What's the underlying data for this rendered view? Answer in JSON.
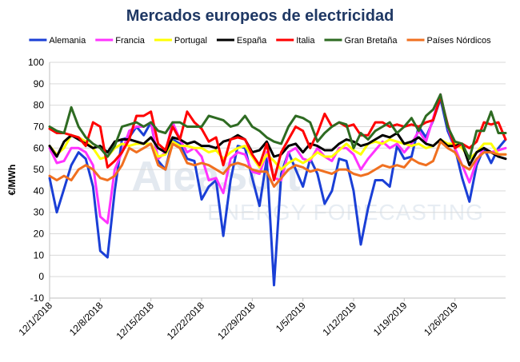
{
  "chart_data": {
    "type": "line",
    "title": "Mercados europeos de electricidad",
    "ylabel": "€/MWh",
    "xlabel": "",
    "ylim": [
      -10,
      100
    ],
    "yticks": [
      -10,
      0,
      10,
      20,
      30,
      40,
      50,
      60,
      70,
      80,
      90,
      100
    ],
    "grid": true,
    "legend_position": "top",
    "x": [
      "12/1/2018",
      "12/2/2018",
      "12/3/2018",
      "12/4/2018",
      "12/5/2018",
      "12/6/2018",
      "12/7/2018",
      "12/8/2018",
      "12/9/2018",
      "12/10/2018",
      "12/11/2018",
      "12/12/2018",
      "12/13/2018",
      "12/14/2018",
      "12/15/2018",
      "12/16/2018",
      "12/17/2018",
      "12/18/2018",
      "12/19/2018",
      "12/20/2018",
      "12/21/2018",
      "12/22/2018",
      "12/23/2018",
      "12/24/2018",
      "12/25/2018",
      "12/26/2018",
      "12/27/2018",
      "12/28/2018",
      "12/29/2018",
      "12/30/2018",
      "12/31/2018",
      "1/1/2019",
      "1/2/2019",
      "1/3/2019",
      "1/4/2019",
      "1/5/2019",
      "1/6/2019",
      "1/7/2019",
      "1/8/2019",
      "1/9/2019",
      "1/10/2019",
      "1/11/2019",
      "1/12/2019",
      "1/13/2019",
      "1/14/2019",
      "1/15/2019",
      "1/16/2019",
      "1/17/2019",
      "1/18/2019",
      "1/19/2019",
      "1/20/2019",
      "1/21/2019",
      "1/22/2019",
      "1/23/2019",
      "1/24/2019",
      "1/25/2019",
      "1/26/2019",
      "1/27/2019",
      "1/28/2019",
      "1/29/2019",
      "1/30/2019",
      "1/31/2019",
      "2/1/2019",
      "2/2/2019"
    ],
    "x_tick_labels": [
      "12/1/2018",
      "12/8/2018",
      "12/15/2018",
      "12/22/2018",
      "12/29/2018",
      "1/5/2019",
      "1/12/2019",
      "1/19/2019",
      "1/26/2019"
    ],
    "series": [
      {
        "name": "Alemania",
        "color": "#1a3fd6",
        "values": [
          46,
          30,
          41,
          52,
          58,
          55,
          42,
          12,
          9,
          40,
          64,
          65,
          70,
          66,
          72,
          54,
          50,
          64,
          62,
          55,
          54,
          36,
          42,
          45,
          19,
          45,
          61,
          60,
          46,
          33,
          55,
          -4,
          48,
          58,
          50,
          42,
          55,
          48,
          34,
          40,
          55,
          54,
          40,
          15,
          32,
          45,
          45,
          42,
          61,
          55,
          56,
          70,
          65,
          73,
          83,
          68,
          60,
          46,
          35,
          52,
          60,
          53,
          60,
          64
        ]
      },
      {
        "name": "Francia",
        "color": "#ff33ff",
        "values": [
          60,
          53,
          54,
          60,
          60,
          58,
          52,
          28,
          25,
          50,
          58,
          68,
          70,
          70,
          72,
          55,
          58,
          72,
          64,
          58,
          60,
          56,
          45,
          46,
          39,
          55,
          58,
          57,
          49,
          48,
          58,
          46,
          45,
          58,
          60,
          55,
          54,
          60,
          56,
          54,
          60,
          60,
          57,
          50,
          55,
          59,
          63,
          60,
          62,
          58,
          62,
          68,
          63,
          74,
          85,
          70,
          60,
          52,
          44,
          54,
          60,
          58,
          59,
          60
        ]
      },
      {
        "name": "Portugal",
        "color": "#ffff00",
        "values": [
          61,
          57,
          60,
          66,
          65,
          63,
          60,
          55,
          56,
          60,
          62,
          61,
          62,
          62,
          62,
          56,
          57,
          63,
          61,
          61,
          60,
          60,
          58,
          59,
          55,
          58,
          60,
          61,
          56,
          51,
          57,
          54,
          50,
          53,
          55,
          53,
          55,
          58,
          56,
          56,
          59,
          62,
          59,
          57,
          62,
          63,
          62,
          64,
          63,
          62,
          61,
          62,
          60,
          61,
          64,
          62,
          62,
          60,
          55,
          58,
          62,
          62,
          57,
          57
        ]
      },
      {
        "name": "España",
        "color": "#000000",
        "values": [
          61,
          56,
          63,
          66,
          64,
          62,
          60,
          61,
          58,
          63,
          64,
          64,
          63,
          62,
          65,
          60,
          58,
          65,
          64,
          62,
          63,
          61,
          61,
          60,
          63,
          64,
          66,
          64,
          58,
          59,
          63,
          56,
          57,
          61,
          62,
          58,
          62,
          61,
          59,
          59,
          62,
          64,
          63,
          61,
          62,
          64,
          66,
          65,
          67,
          62,
          63,
          65,
          62,
          61,
          64,
          61,
          61,
          62,
          52,
          58,
          60,
          58,
          56,
          55
        ]
      },
      {
        "name": "Italia",
        "color": "#ff0000",
        "values": [
          69,
          67,
          67,
          66,
          65,
          61,
          72,
          70,
          51,
          54,
          58,
          64,
          75,
          75,
          77,
          62,
          59,
          70,
          64,
          77,
          72,
          69,
          63,
          65,
          52,
          64,
          65,
          64,
          57,
          52,
          62,
          45,
          58,
          64,
          70,
          68,
          60,
          67,
          76,
          70,
          72,
          70,
          71,
          66,
          66,
          72,
          72,
          70,
          71,
          70,
          71,
          70,
          72,
          73,
          84,
          71,
          60,
          62,
          60,
          63,
          72,
          71,
          72,
          64
        ]
      },
      {
        "name": "Gran Bretaña",
        "color": "#2e6b22",
        "values": [
          70,
          68,
          67,
          79,
          70,
          65,
          62,
          60,
          56,
          61,
          70,
          71,
          72,
          70,
          72,
          68,
          67,
          72,
          72,
          70,
          70,
          70,
          75,
          74,
          73,
          70,
          71,
          75,
          70,
          68,
          65,
          63,
          62,
          70,
          75,
          74,
          72,
          63,
          67,
          70,
          72,
          71,
          60,
          67,
          64,
          68,
          70,
          72,
          67,
          70,
          74,
          68,
          75,
          78,
          85,
          70,
          63,
          62,
          55,
          68,
          68,
          77,
          67,
          67
        ]
      },
      {
        "name": "Países Nórdicos",
        "color": "#f07020",
        "values": [
          47,
          45,
          47,
          45,
          50,
          52,
          50,
          46,
          45,
          47,
          52,
          60,
          58,
          60,
          62,
          52,
          50,
          62,
          60,
          53,
          52,
          53,
          52,
          50,
          48,
          52,
          53,
          52,
          50,
          49,
          49,
          42,
          46,
          50,
          52,
          51,
          49,
          50,
          49,
          48,
          50,
          50,
          48,
          47,
          48,
          50,
          52,
          51,
          52,
          51,
          55,
          53,
          52,
          54,
          63,
          60,
          58,
          52,
          50,
          55,
          58,
          58,
          57,
          57
        ]
      }
    ]
  },
  "watermark": {
    "main": "AleaSoft",
    "sub": "ENERGY FORECASTING"
  }
}
